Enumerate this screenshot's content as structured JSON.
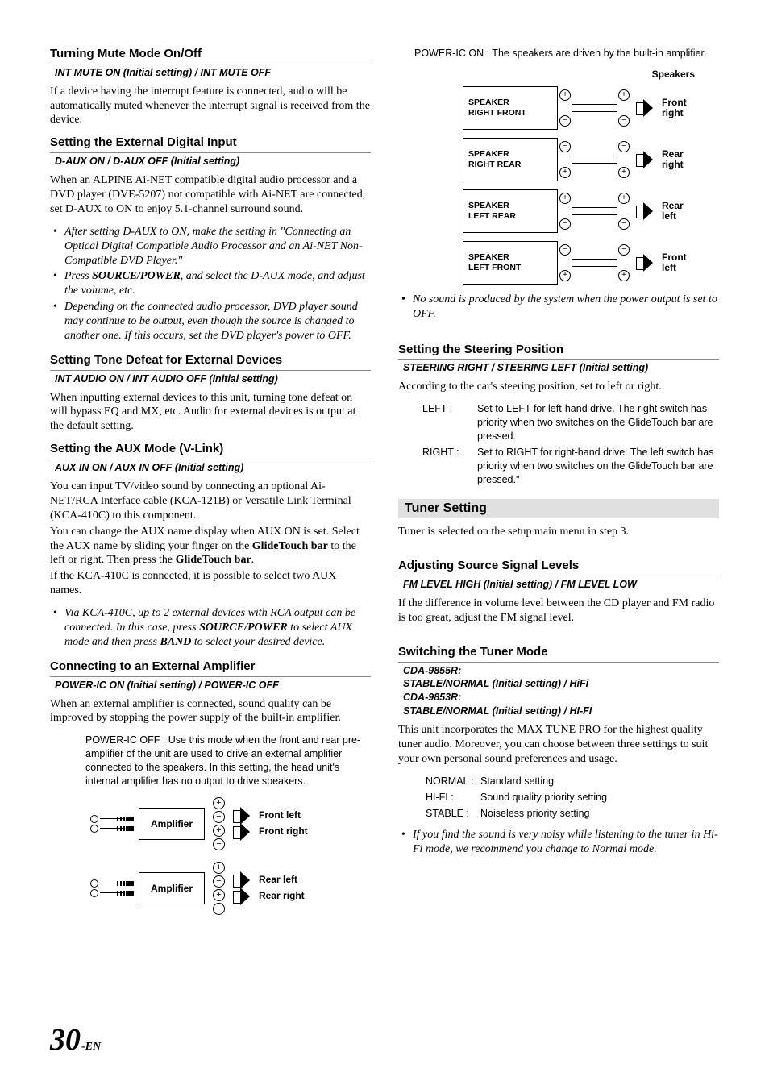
{
  "page_number": "30",
  "page_suffix": "-EN",
  "left": {
    "mute": {
      "title": "Turning Mute Mode On/Off",
      "opts": "INT MUTE ON (Initial setting) / INT MUTE OFF",
      "body": "If a device having the interrupt feature is connected, audio will be automatically muted whenever the interrupt signal is received from the device."
    },
    "daux": {
      "title": "Setting the External Digital Input",
      "opts": "D-AUX ON / D-AUX OFF (Initial setting)",
      "body": "When an ALPINE Ai-NET compatible digital audio processor and a DVD player (DVE-5207) not compatible with Ai-NET are connected, set D-AUX to ON to enjoy 5.1-channel surround sound.",
      "notes": [
        "After setting D-AUX to ON, make the setting in \"Connecting an Optical Digital Compatible Audio Processor and an Ai-NET Non-Compatible DVD Player.\"",
        "Press <b>SOURCE/POWER</b>, and select the D-AUX mode, and adjust the volume, etc.",
        "Depending on the connected audio processor, DVD player sound may continue to be output, even though the source is changed to another one. If this occurs, set the DVD player's power to OFF."
      ]
    },
    "tonedef": {
      "title": "Setting Tone Defeat for External Devices",
      "opts": "INT AUDIO ON / INT AUDIO OFF (Initial setting)",
      "body": "When inputting external devices to this unit, turning tone defeat on will bypass EQ and MX, etc. Audio for external devices is output at the default setting."
    },
    "aux": {
      "title": "Setting the AUX Mode (V-Link)",
      "opts": "AUX IN ON / AUX IN OFF (Initial setting)",
      "body1": "You can input TV/video sound by connecting an optional Ai-NET/RCA Interface cable (KCA-121B) or Versatile Link Terminal (KCA-410C) to this component.",
      "body2": "You can change the AUX name display when AUX ON is set. Select the AUX name by sliding your finger on the <b>GlideTouch bar</b> to the left or right. Then press the <b>GlideTouch bar</b>.",
      "body3": "If the KCA-410C is connected, it is possible to select two AUX names.",
      "note": "Via KCA-410C, up to 2 external devices with RCA output can be connected. In this case, press <b>SOURCE/POWER</b> to select AUX mode and then press <b>BAND</b> to select your desired device."
    },
    "extamp": {
      "title": "Connecting to an External Amplifier",
      "opts": "POWER-IC ON (Initial setting) / POWER-IC OFF",
      "body": "When an external amplifier is connected, sound quality can be improved by stopping the power supply of the built-in amplifier.",
      "off_desc": "<span class='nn'>POWER-IC OFF</span> : Use this mode when the front and rear pre-amplifier of the unit are used to drive an external amplifier connected to the speakers. In this setting, the head unit's internal amplifier has no output to drive speakers.",
      "amp_label": "Amplifier",
      "sp_labels": [
        "Front left",
        "Front right",
        "Rear left",
        "Rear right"
      ]
    }
  },
  "right": {
    "poweron": "<span class='nn' style='font-family:Arial,Helvetica,sans-serif;font-size:12.5px;'>POWER-IC ON</span> : The speakers are driven by the built-in amplifier.",
    "speakers_title": "Speakers",
    "spk_boxes": [
      {
        "l1": "SPEAKER",
        "l2": "RIGHT FRONT",
        "top": "+",
        "bot": "−",
        "lab": "Front right"
      },
      {
        "l1": "SPEAKER",
        "l2": "RIGHT REAR",
        "top": "−",
        "bot": "+",
        "lab": "Rear right"
      },
      {
        "l1": "SPEAKER",
        "l2": "LEFT REAR",
        "top": "+",
        "bot": "−",
        "lab": "Rear left"
      },
      {
        "l1": "SPEAKER",
        "l2": "LEFT FRONT",
        "top": "−",
        "bot": "+",
        "lab": "Front left"
      }
    ],
    "no_sound_note": "No sound is produced by the system when the power output is set to OFF.",
    "steering": {
      "title": "Setting the Steering Position",
      "opts": "STEERING RIGHT / STEERING LEFT (Initial setting)",
      "body": "According to the car's steering position, set to left or right.",
      "defs": [
        {
          "k": "LEFT :",
          "v": "Set to LEFT for left-hand drive. The right switch has priority when two switches on the <span class='nn'>GlideTouch bar</span> are pressed."
        },
        {
          "k": "RIGHT :",
          "v": "Set to RIGHT for right-hand drive. The left switch has priority when two switches on the <span class='nn'>GlideTouch bar</span> are pressed.\""
        }
      ]
    },
    "tuner_title": "Tuner Setting",
    "tuner_intro": "Tuner is selected on the setup main menu in step 3.",
    "fmlevel": {
      "title": "Adjusting Source Signal Levels",
      "opts": "FM LEVEL HIGH (Initial setting) / FM LEVEL LOW",
      "body": "If the difference in volume level between the CD player and FM radio is too great, adjust the FM signal level."
    },
    "tunermode": {
      "title": "Switching the Tuner Mode",
      "opts": [
        "CDA-9855R:",
        "STABLE/NORMAL (Initial setting) / HiFi",
        "CDA-9853R:",
        "STABLE/NORMAL (Initial setting) / HI-FI"
      ],
      "body": "This unit incorporates the MAX TUNE PRO for the highest quality tuner audio. Moreover, you can choose between three settings to suit your own personal sound preferences and usage.",
      "defs": [
        {
          "k": "NORMAL :",
          "v": "Standard setting"
        },
        {
          "k": "HI-FI :",
          "v": "Sound quality priority setting"
        },
        {
          "k": "STABLE :",
          "v": "Noiseless priority setting"
        }
      ],
      "note": "If you find the sound is very noisy while listening to the tuner in Hi-Fi mode, we recommend you change to Normal mode."
    }
  },
  "colors": {
    "text": "#000000",
    "rule": "#888888",
    "major_bg": "#e0e0e0",
    "bg": "#ffffff"
  },
  "fonts": {
    "serif": "Times New Roman",
    "sans": "Arial",
    "heading_size": 15,
    "opts_size": 12.5,
    "body_size": 14,
    "sans_body_size": 12.5,
    "major_size": 16,
    "pagenum_size": 38
  }
}
